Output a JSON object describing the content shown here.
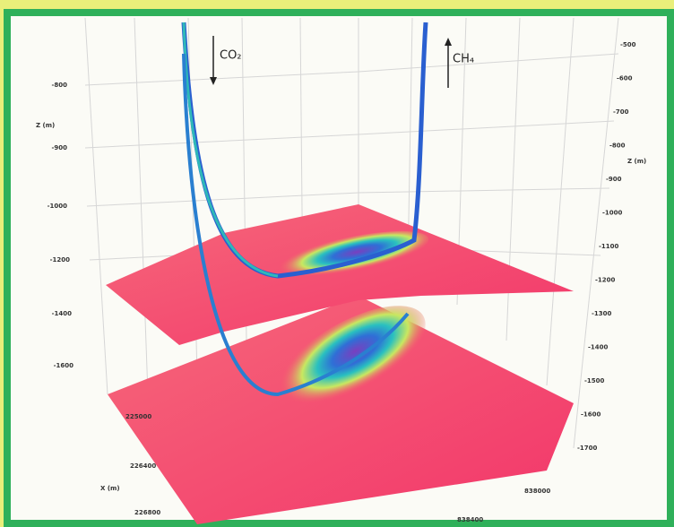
{
  "labels": {
    "co2": "CO₂",
    "ch4": "CH₄",
    "left_axis": "Z (m)",
    "right_axis": "Z (m)",
    "x_axis": "X (m)"
  },
  "left_ticks": [
    "-800",
    "-900",
    "-1000",
    "-1200",
    "-1400",
    "-1600"
  ],
  "right_ticks": [
    "-500",
    "-600",
    "-700",
    "-800",
    "-900",
    "-1000",
    "-1100",
    "-1200",
    "-1300",
    "-1400",
    "-1500",
    "-1600",
    "-1700"
  ],
  "x_ticks": [
    "225000",
    "226400",
    "226800"
  ],
  "y_ticks": [
    "838000",
    "838400"
  ]
}
